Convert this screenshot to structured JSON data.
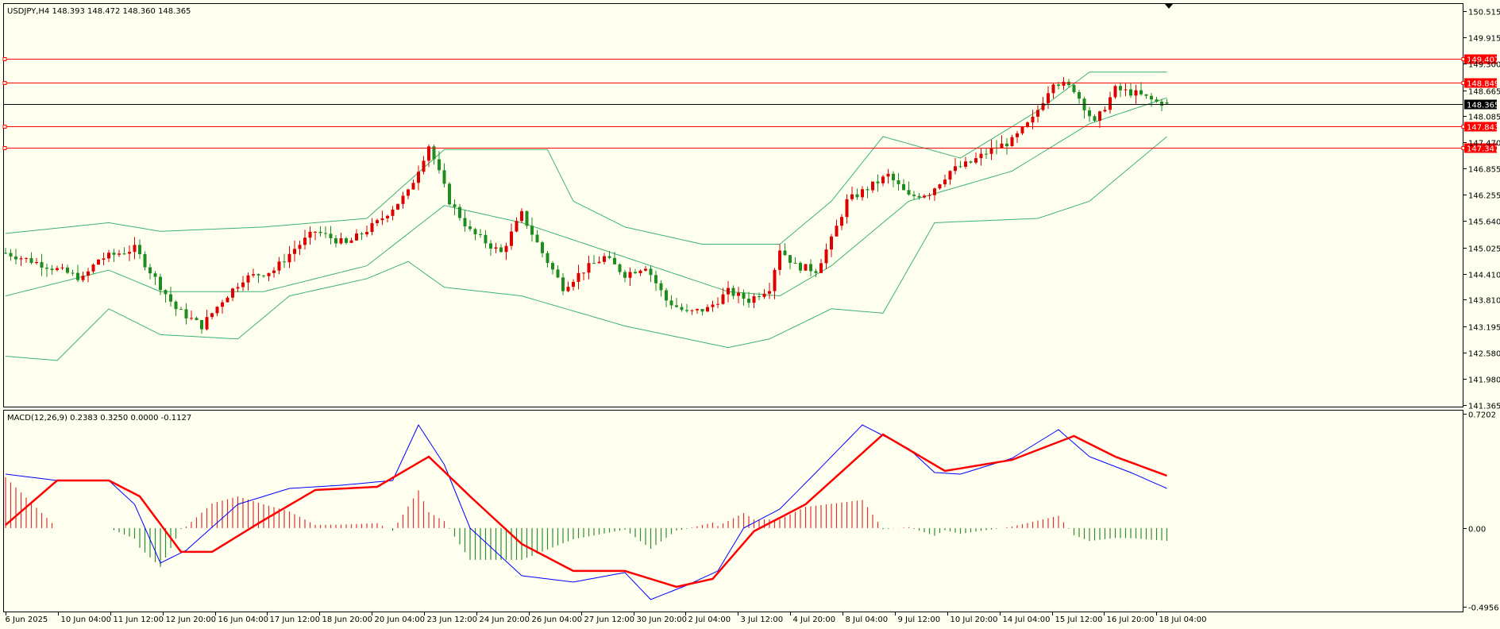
{
  "chart_data": {
    "type": "candlestick",
    "symbol_header": "USDJPY,H4  148.393 148.472 148.360 148.365",
    "ohlc": {
      "open": 148.393,
      "high": 148.472,
      "low": 148.36,
      "close": 148.365
    },
    "last_price": "148.365",
    "price_axis": {
      "range": [
        141.365,
        150.515
      ],
      "ticks": [
        "150.515",
        "149.915",
        "149.300",
        "148.665",
        "148.085",
        "147.470",
        "146.855",
        "146.255",
        "145.640",
        "145.025",
        "144.410",
        "143.810",
        "143.195",
        "142.580",
        "141.980",
        "141.365"
      ]
    },
    "levels": [
      {
        "label": "149.407",
        "color": "#ff0000"
      },
      {
        "label": "148.849",
        "color": "#ff0000"
      },
      {
        "label": "148.365",
        "color": "#000000"
      },
      {
        "label": "147.843",
        "color": "#ff0000"
      },
      {
        "label": "147.347",
        "color": "#ff0000"
      }
    ],
    "time_axis": [
      "6 Jun 2025",
      "10 Jun 04:00",
      "11 Jun 12:00",
      "12 Jun 20:00",
      "16 Jun 04:00",
      "17 Jun 12:00",
      "18 Jun 20:00",
      "20 Jun 04:00",
      "23 Jun 12:00",
      "24 Jun 20:00",
      "26 Jun 04:00",
      "27 Jun 12:00",
      "30 Jun 20:00",
      "2 Jul 04:00",
      "3 Jul 12:00",
      "4 Jul 20:00",
      "8 Jul 04:00",
      "9 Jul 12:00",
      "10 Jul 20:00",
      "14 Jul 04:00",
      "15 Jul 12:00",
      "16 Jul 20:00",
      "18 Jul 04:00"
    ],
    "price_path": [
      [
        0,
        144.9
      ],
      [
        8,
        144.6
      ],
      [
        15,
        144.3
      ],
      [
        18,
        144.75
      ],
      [
        25,
        145.0
      ],
      [
        29,
        144.3
      ],
      [
        33,
        143.6
      ],
      [
        38,
        143.2
      ],
      [
        42,
        143.8
      ],
      [
        46,
        144.3
      ],
      [
        52,
        144.5
      ],
      [
        56,
        145.0
      ],
      [
        60,
        145.4
      ],
      [
        66,
        145.1
      ],
      [
        72,
        145.6
      ],
      [
        78,
        146.3
      ],
      [
        82,
        147.4
      ],
      [
        86,
        146.1
      ],
      [
        90,
        145.4
      ],
      [
        96,
        144.9
      ],
      [
        100,
        145.8
      ],
      [
        104,
        144.9
      ],
      [
        108,
        144.1
      ],
      [
        112,
        144.5
      ],
      [
        116,
        144.8
      ],
      [
        120,
        144.4
      ],
      [
        124,
        144.6
      ],
      [
        128,
        143.8
      ],
      [
        132,
        143.5
      ],
      [
        136,
        143.6
      ],
      [
        140,
        144.0
      ],
      [
        144,
        143.8
      ],
      [
        148,
        144.1
      ],
      [
        150,
        145.0
      ],
      [
        153,
        144.6
      ],
      [
        157,
        144.5
      ],
      [
        160,
        145.2
      ],
      [
        163,
        146.1
      ],
      [
        167,
        146.4
      ],
      [
        171,
        146.7
      ],
      [
        175,
        146.2
      ],
      [
        179,
        146.3
      ],
      [
        183,
        146.8
      ],
      [
        187,
        147.0
      ],
      [
        191,
        147.3
      ],
      [
        195,
        147.5
      ],
      [
        199,
        148.0
      ],
      [
        203,
        148.9
      ],
      [
        207,
        148.7
      ],
      [
        211,
        147.9
      ],
      [
        215,
        148.7
      ],
      [
        219,
        148.6
      ],
      [
        223,
        148.4
      ],
      [
        225,
        148.365
      ]
    ],
    "bollinger_upper": [
      [
        0,
        145.35
      ],
      [
        20,
        145.6
      ],
      [
        30,
        145.4
      ],
      [
        50,
        145.5
      ],
      [
        70,
        145.7
      ],
      [
        85,
        147.3
      ],
      [
        95,
        147.3
      ],
      [
        105,
        147.3
      ],
      [
        110,
        146.1
      ],
      [
        120,
        145.5
      ],
      [
        135,
        145.1
      ],
      [
        150,
        145.1
      ],
      [
        160,
        146.1
      ],
      [
        170,
        147.6
      ],
      [
        185,
        147.1
      ],
      [
        200,
        148.2
      ],
      [
        210,
        149.1
      ],
      [
        225,
        149.1
      ]
    ],
    "bollinger_middle": [
      [
        0,
        143.9
      ],
      [
        20,
        144.5
      ],
      [
        30,
        144.0
      ],
      [
        50,
        144.0
      ],
      [
        70,
        144.6
      ],
      [
        85,
        146.0
      ],
      [
        100,
        145.6
      ],
      [
        120,
        144.8
      ],
      [
        140,
        144.0
      ],
      [
        150,
        143.9
      ],
      [
        160,
        144.6
      ],
      [
        175,
        146.1
      ],
      [
        195,
        146.8
      ],
      [
        210,
        147.9
      ],
      [
        225,
        148.5
      ]
    ],
    "bollinger_lower": [
      [
        0,
        142.5
      ],
      [
        10,
        142.4
      ],
      [
        20,
        143.6
      ],
      [
        30,
        143.0
      ],
      [
        45,
        142.9
      ],
      [
        55,
        143.9
      ],
      [
        70,
        144.3
      ],
      [
        78,
        144.7
      ],
      [
        85,
        144.1
      ],
      [
        100,
        143.9
      ],
      [
        120,
        143.2
      ],
      [
        140,
        142.7
      ],
      [
        148,
        142.9
      ],
      [
        160,
        143.6
      ],
      [
        170,
        143.5
      ],
      [
        180,
        145.6
      ],
      [
        200,
        145.7
      ],
      [
        210,
        146.1
      ],
      [
        225,
        147.6
      ]
    ],
    "macd_header": "MACD(12,26,9) 0.2383 0.3250 0.0000 -0.1127",
    "macd_axis": {
      "range": [
        -0.4956,
        0.7202
      ],
      "ticks": [
        "0.7202",
        "0.00",
        "-0.4956"
      ]
    },
    "macd_line": [
      [
        0,
        0.34
      ],
      [
        10,
        0.3
      ],
      [
        20,
        0.3
      ],
      [
        25,
        0.15
      ],
      [
        30,
        -0.22
      ],
      [
        35,
        -0.14
      ],
      [
        45,
        0.15
      ],
      [
        55,
        0.25
      ],
      [
        65,
        0.27
      ],
      [
        75,
        0.3
      ],
      [
        80,
        0.65
      ],
      [
        85,
        0.4
      ],
      [
        90,
        0.0
      ],
      [
        100,
        -0.3
      ],
      [
        110,
        -0.34
      ],
      [
        120,
        -0.28
      ],
      [
        125,
        -0.45
      ],
      [
        132,
        -0.36
      ],
      [
        138,
        -0.27
      ],
      [
        143,
        0.0
      ],
      [
        150,
        0.12
      ],
      [
        157,
        0.35
      ],
      [
        166,
        0.65
      ],
      [
        175,
        0.5
      ],
      [
        180,
        0.35
      ],
      [
        185,
        0.34
      ],
      [
        195,
        0.44
      ],
      [
        204,
        0.62
      ],
      [
        210,
        0.45
      ],
      [
        218,
        0.35
      ],
      [
        225,
        0.25
      ]
    ],
    "signal_line": [
      [
        0,
        0.02
      ],
      [
        10,
        0.3
      ],
      [
        20,
        0.3
      ],
      [
        26,
        0.2
      ],
      [
        34,
        -0.15
      ],
      [
        40,
        -0.15
      ],
      [
        50,
        0.05
      ],
      [
        60,
        0.24
      ],
      [
        72,
        0.26
      ],
      [
        82,
        0.45
      ],
      [
        90,
        0.2
      ],
      [
        100,
        -0.1
      ],
      [
        110,
        -0.27
      ],
      [
        120,
        -0.27
      ],
      [
        130,
        -0.37
      ],
      [
        137,
        -0.32
      ],
      [
        145,
        -0.02
      ],
      [
        155,
        0.15
      ],
      [
        170,
        0.59
      ],
      [
        182,
        0.36
      ],
      [
        195,
        0.43
      ],
      [
        207,
        0.58
      ],
      [
        215,
        0.45
      ],
      [
        225,
        0.33
      ]
    ]
  }
}
